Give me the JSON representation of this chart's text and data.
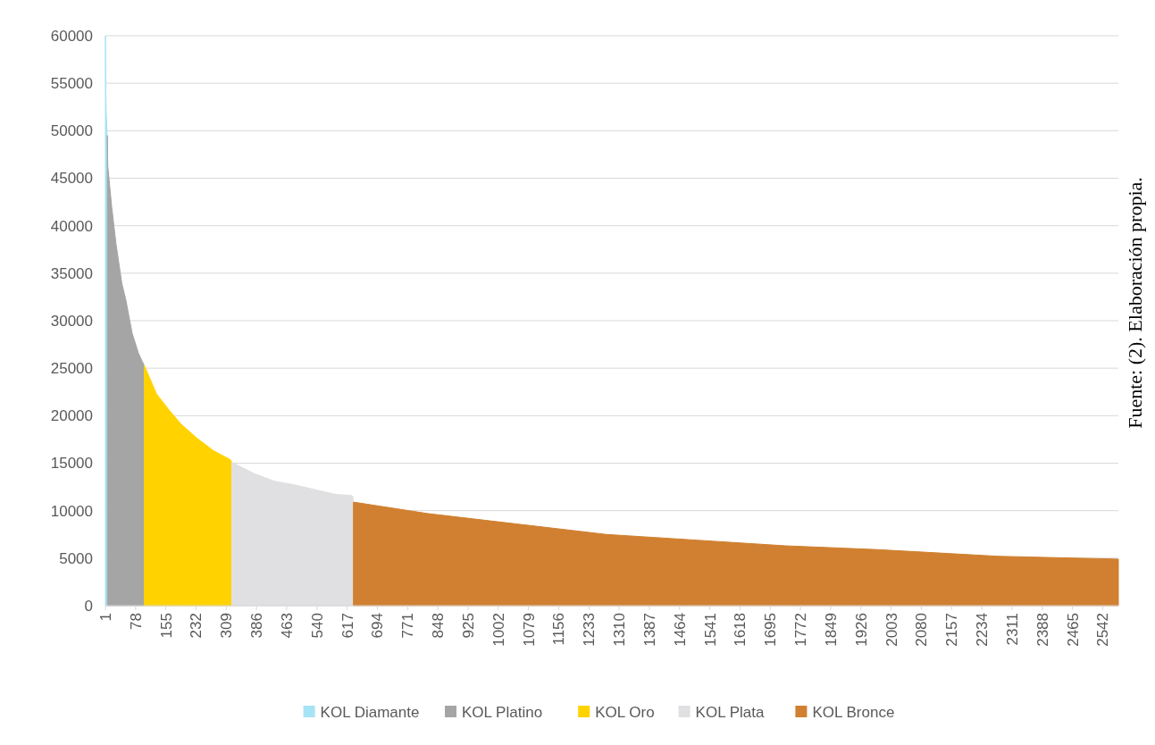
{
  "chart_data": {
    "type": "area",
    "series": [
      {
        "name": "KOL Diamante",
        "color": "#a6e3f5",
        "x": [
          1,
          2,
          3,
          5
        ],
        "values": [
          60000,
          54000,
          52000,
          50000
        ]
      },
      {
        "name": "KOL Platino",
        "color": "#a5a5a5",
        "x": [
          6,
          7,
          17,
          28,
          43,
          53,
          69,
          85,
          95,
          99
        ],
        "values": [
          49500,
          46300,
          42000,
          38100,
          33900,
          32200,
          28700,
          26600,
          25700,
          25400
        ]
      },
      {
        "name": "KOL Oro",
        "color": "#ffd200",
        "x": [
          100,
          131,
          163,
          194,
          235,
          277,
          318,
          322
        ],
        "values": [
          25300,
          22300,
          20600,
          19100,
          17600,
          16300,
          15400,
          15200
        ]
      },
      {
        "name": "KOL Plata",
        "color": "#e0e0e2",
        "x": [
          323,
          380,
          432,
          485,
          536,
          588,
          627,
          632
        ],
        "values": [
          15100,
          13900,
          13100,
          12700,
          12200,
          11700,
          11600,
          11500
        ]
      },
      {
        "name": "KOL Bronce",
        "color": "#d08030",
        "x": [
          633,
          821,
          1049,
          1277,
          1506,
          1734,
          1969,
          2275,
          2582
        ],
        "values": [
          10900,
          9700,
          8600,
          7500,
          6900,
          6300,
          5900,
          5200,
          4900
        ]
      }
    ],
    "xlim": [
      1,
      2582
    ],
    "xticks": [
      1,
      78,
      155,
      232,
      309,
      386,
      463,
      540,
      617,
      694,
      771,
      848,
      925,
      1002,
      1079,
      1156,
      1233,
      1310,
      1387,
      1464,
      1541,
      1618,
      1695,
      1772,
      1849,
      1926,
      2003,
      2080,
      2157,
      2234,
      2311,
      2388,
      2465,
      2542
    ],
    "ylim": [
      0,
      60000
    ],
    "yticks": [
      0,
      5000,
      10000,
      15000,
      20000,
      25000,
      30000,
      35000,
      40000,
      45000,
      50000,
      55000,
      60000
    ],
    "grid": "y",
    "legend": "bottom",
    "annotations": [
      "Fuente: (2). Elaboración propia."
    ]
  }
}
